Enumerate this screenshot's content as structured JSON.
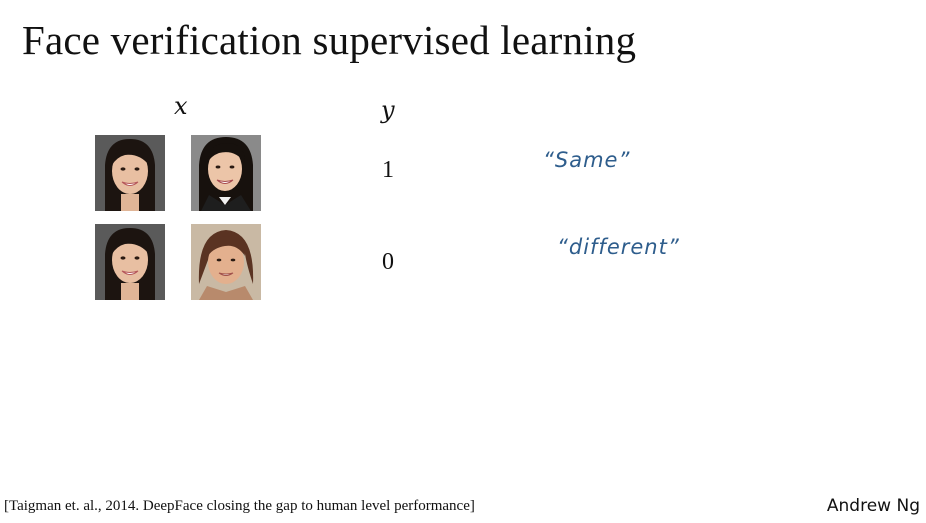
{
  "slide": {
    "title": "Face verification supervised learning",
    "x_header": "x",
    "y_header": "y"
  },
  "rows": [
    {
      "images": [
        "face-young-woman-smiling",
        "face-woman-dark-hair-blazer"
      ],
      "label": "1",
      "annotation": "“Same”"
    },
    {
      "images": [
        "face-young-woman-smiling",
        "face-older-woman-short-hair"
      ],
      "label": "0",
      "annotation": "“different”"
    }
  ],
  "footer": {
    "citation": "[Taigman et. al., 2014. DeepFace closing the gap to human level performance]",
    "author": "Andrew Ng"
  },
  "colors": {
    "ink": "#111111",
    "annotation": "#2e5d8c"
  }
}
